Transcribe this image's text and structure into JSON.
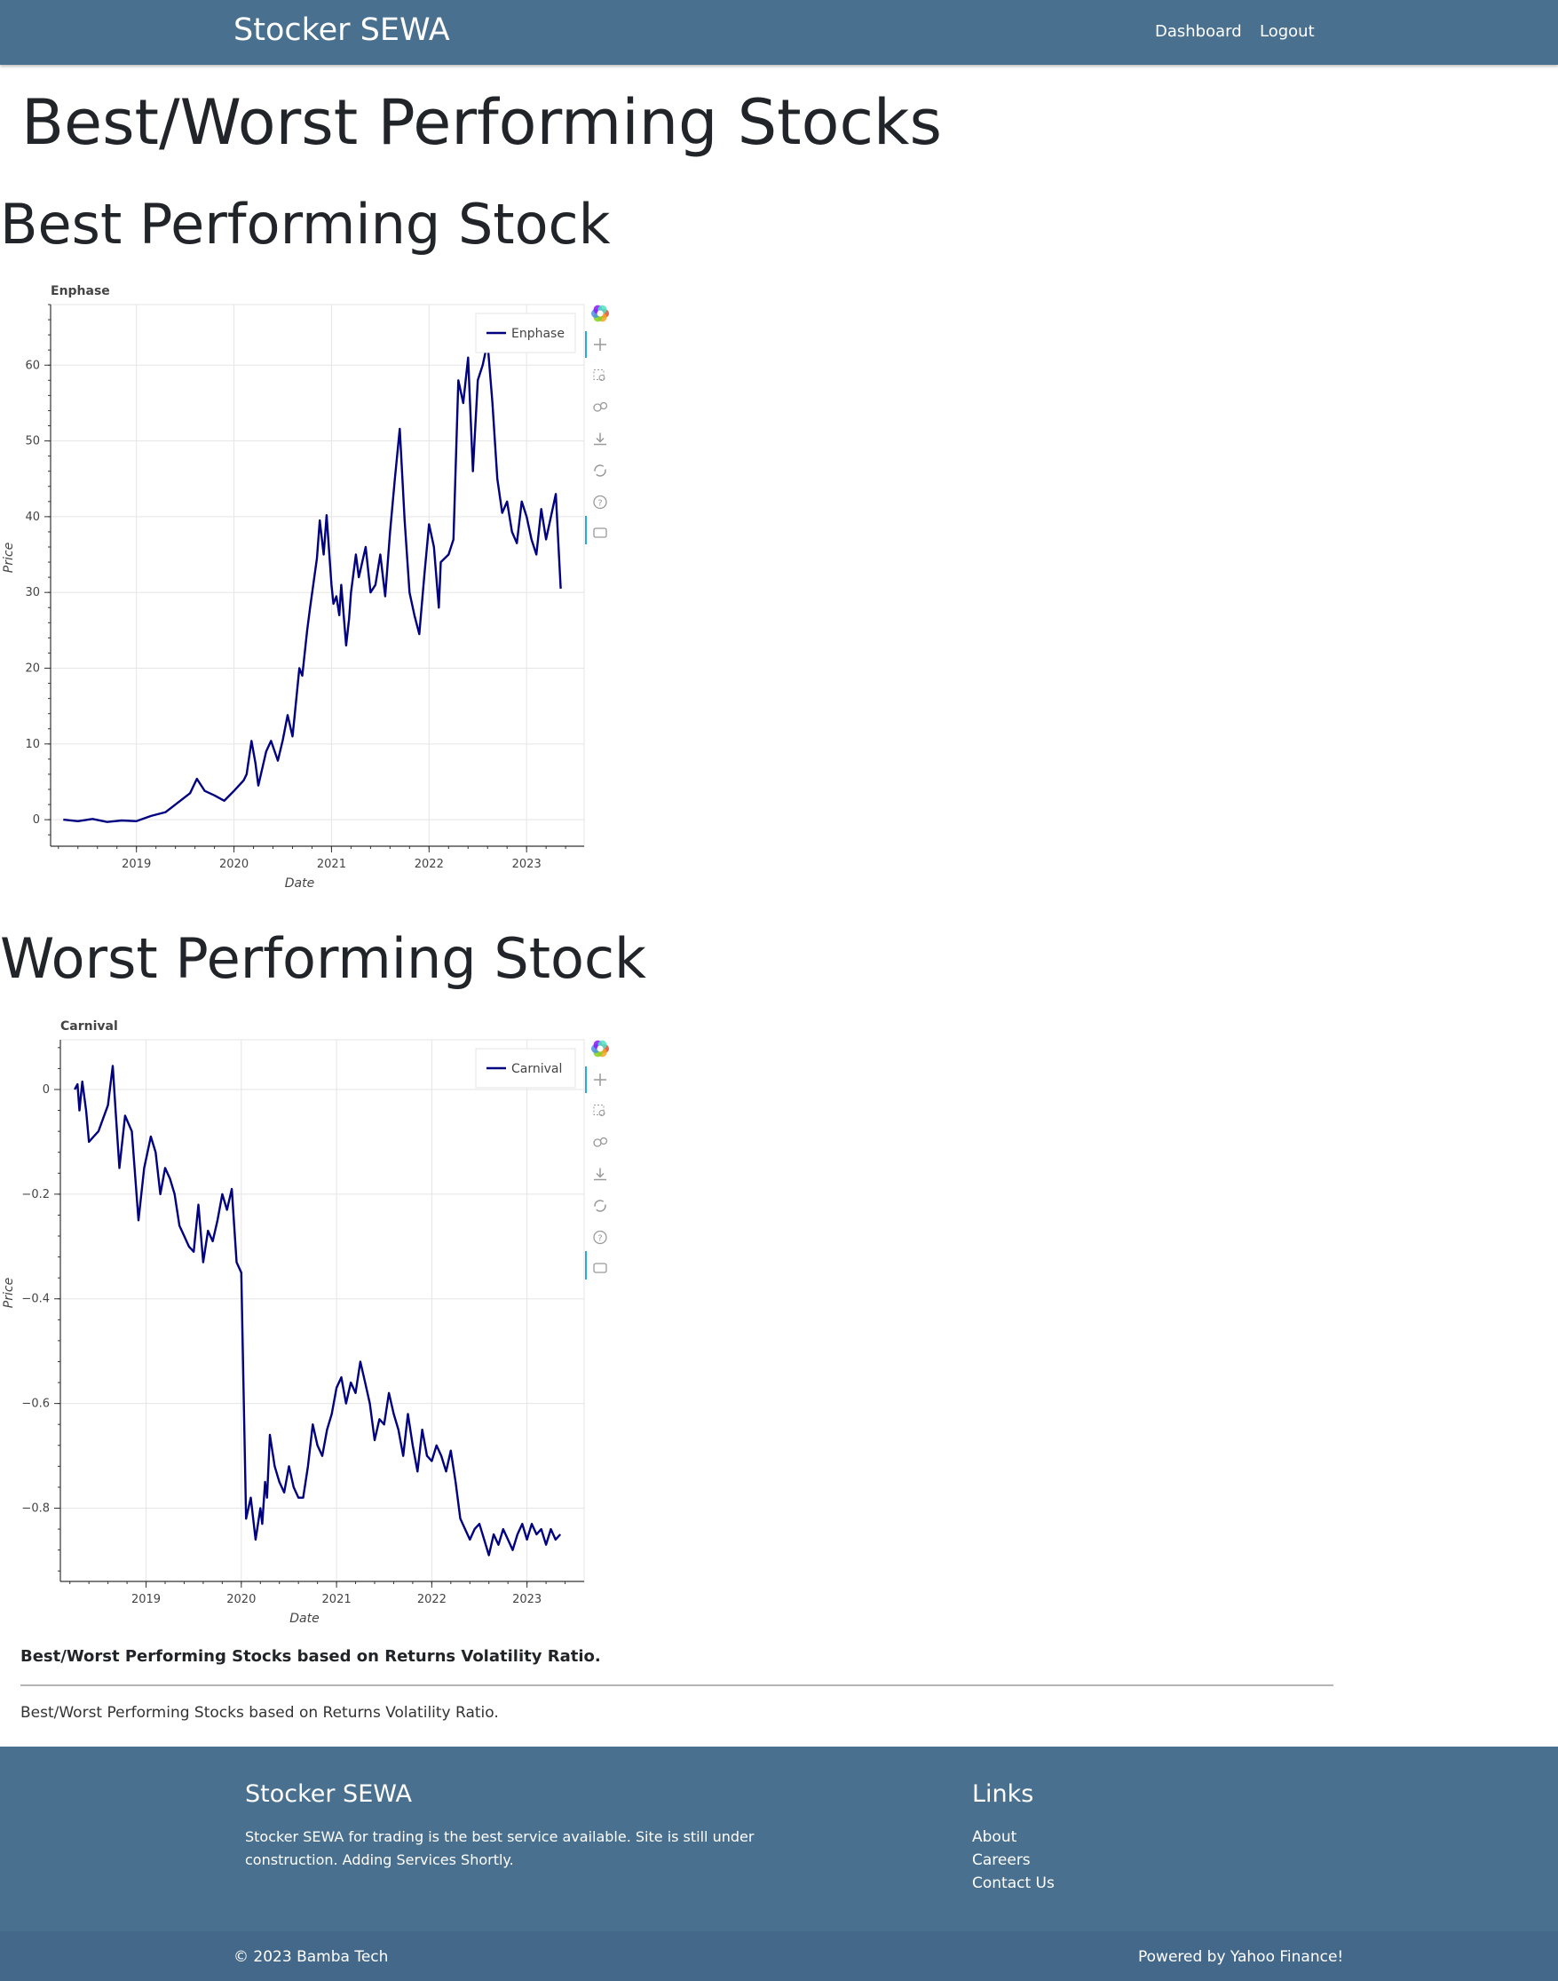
{
  "navbar": {
    "brand": "Stocker SEWA",
    "links": [
      "Dashboard",
      "Logout"
    ]
  },
  "page": {
    "title": "Best/Worst Performing Stocks",
    "best_heading": "Best Performing Stock",
    "worst_heading": "Worst Performing Stock",
    "caption_bold": "Best/Worst Performing Stocks based on Returns Volatility Ratio.",
    "caption": "Best/Worst Performing Stocks based on Returns Volatility Ratio."
  },
  "toolbar": {
    "tools": [
      "bokeh-logo",
      "pan-icon",
      "box-zoom-icon",
      "wheel-zoom-icon",
      "save-icon",
      "reset-icon",
      "help-icon",
      "hover-icon"
    ]
  },
  "chart_data": [
    {
      "type": "line",
      "title": "Enphase",
      "xlabel": "Date",
      "ylabel": "Price",
      "x_ticks": [
        "2019",
        "2020",
        "2021",
        "2022",
        "2023"
      ],
      "y_ticks": [
        "0",
        "10",
        "20",
        "30",
        "40",
        "50",
        "60"
      ],
      "xlim": [
        2018.12,
        2023.59
      ],
      "ylim": [
        -3.5,
        68.0
      ],
      "grid": true,
      "legend_position": "top-right",
      "series": [
        {
          "name": "Enphase",
          "color": "#000080",
          "x": [
            2018.25,
            2018.4,
            2018.55,
            2018.7,
            2018.85,
            2019.0,
            2019.15,
            2019.3,
            2019.45,
            2019.55,
            2019.62,
            2019.7,
            2019.8,
            2019.9,
            2020.0,
            2020.1,
            2020.13,
            2020.18,
            2020.22,
            2020.25,
            2020.33,
            2020.38,
            2020.45,
            2020.5,
            2020.55,
            2020.6,
            2020.62,
            2020.67,
            2020.7,
            2020.75,
            2020.78,
            2020.85,
            2020.88,
            2020.92,
            2020.95,
            2021.0,
            2021.02,
            2021.05,
            2021.08,
            2021.1,
            2021.15,
            2021.18,
            2021.2,
            2021.25,
            2021.28,
            2021.35,
            2021.4,
            2021.45,
            2021.5,
            2021.55,
            2021.6,
            2021.65,
            2021.7,
            2021.75,
            2021.8,
            2021.85,
            2021.9,
            2021.95,
            2022.0,
            2022.05,
            2022.1,
            2022.12,
            2022.2,
            2022.25,
            2022.3,
            2022.35,
            2022.4,
            2022.45,
            2022.5,
            2022.55,
            2022.6,
            2022.65,
            2022.7,
            2022.75,
            2022.8,
            2022.85,
            2022.9,
            2022.95,
            2023.0,
            2023.05,
            2023.1,
            2023.15,
            2023.2,
            2023.25,
            2023.3,
            2023.35
          ],
          "y": [
            0.0,
            -0.2,
            0.1,
            -0.3,
            -0.1,
            -0.2,
            0.5,
            1.0,
            2.5,
            3.5,
            5.4,
            3.8,
            3.2,
            2.5,
            3.8,
            5.2,
            6.0,
            10.4,
            7.5,
            4.5,
            9.0,
            10.4,
            7.8,
            10.5,
            13.8,
            11.0,
            13.5,
            20.0,
            19.0,
            25.0,
            28.0,
            34.5,
            39.5,
            35.0,
            40.2,
            31.0,
            28.5,
            29.5,
            27.0,
            31.0,
            23.0,
            26.5,
            30.0,
            35.0,
            32.0,
            36.0,
            30.0,
            31.0,
            35.0,
            29.5,
            38.0,
            45.0,
            51.6,
            39.5,
            30.0,
            27.0,
            24.5,
            32.0,
            39.0,
            36.0,
            28.0,
            34.0,
            35.0,
            37.0,
            58.0,
            55.0,
            61.0,
            46.0,
            58.0,
            60.0,
            63.0,
            55.0,
            45.0,
            40.5,
            42.0,
            38.0,
            36.5,
            42.0,
            40.0,
            37.0,
            35.0,
            41.0,
            37.0,
            40.0,
            43.0,
            30.5
          ]
        }
      ]
    },
    {
      "type": "line",
      "title": "Carnival",
      "xlabel": "Date",
      "ylabel": "Price",
      "x_ticks": [
        "2019",
        "2020",
        "2021",
        "2022",
        "2023"
      ],
      "y_ticks": [
        "0",
        "−0.2",
        "−0.4",
        "−0.6",
        "−0.8"
      ],
      "xlim": [
        2018.1,
        2023.6
      ],
      "ylim": [
        -0.94,
        0.095
      ],
      "grid": true,
      "legend_position": "top-right",
      "series": [
        {
          "name": "Carnival",
          "color": "#000080",
          "x": [
            2018.25,
            2018.28,
            2018.3,
            2018.33,
            2018.37,
            2018.4,
            2018.45,
            2018.5,
            2018.6,
            2018.65,
            2018.68,
            2018.72,
            2018.78,
            2018.85,
            2018.92,
            2018.98,
            2019.05,
            2019.1,
            2019.15,
            2019.2,
            2019.25,
            2019.3,
            2019.35,
            2019.4,
            2019.45,
            2019.5,
            2019.55,
            2019.6,
            2019.65,
            2019.7,
            2019.75,
            2019.8,
            2019.85,
            2019.9,
            2019.95,
            2020.0,
            2020.05,
            2020.1,
            2020.15,
            2020.2,
            2020.22,
            2020.25,
            2020.27,
            2020.3,
            2020.35,
            2020.4,
            2020.45,
            2020.5,
            2020.55,
            2020.6,
            2020.65,
            2020.7,
            2020.75,
            2020.8,
            2020.85,
            2020.9,
            2020.95,
            2021.0,
            2021.05,
            2021.1,
            2021.15,
            2021.2,
            2021.25,
            2021.3,
            2021.35,
            2021.4,
            2021.45,
            2021.5,
            2021.55,
            2021.6,
            2021.65,
            2021.7,
            2021.75,
            2021.8,
            2021.85,
            2021.9,
            2021.95,
            2022.0,
            2022.05,
            2022.1,
            2022.15,
            2022.2,
            2022.25,
            2022.3,
            2022.35,
            2022.4,
            2022.45,
            2022.5,
            2022.55,
            2022.6,
            2022.65,
            2022.7,
            2022.75,
            2022.8,
            2022.85,
            2022.9,
            2022.95,
            2023.0,
            2023.05,
            2023.1,
            2023.15,
            2023.2,
            2023.25,
            2023.3,
            2023.35
          ],
          "y": [
            0.0,
            0.01,
            -0.04,
            0.015,
            -0.04,
            -0.1,
            -0.09,
            -0.08,
            -0.03,
            0.045,
            -0.04,
            -0.15,
            -0.05,
            -0.08,
            -0.25,
            -0.15,
            -0.09,
            -0.12,
            -0.2,
            -0.15,
            -0.17,
            -0.2,
            -0.26,
            -0.28,
            -0.3,
            -0.31,
            -0.22,
            -0.33,
            -0.27,
            -0.29,
            -0.25,
            -0.2,
            -0.23,
            -0.19,
            -0.33,
            -0.35,
            -0.82,
            -0.78,
            -0.86,
            -0.8,
            -0.83,
            -0.75,
            -0.78,
            -0.66,
            -0.72,
            -0.75,
            -0.77,
            -0.72,
            -0.76,
            -0.78,
            -0.78,
            -0.72,
            -0.64,
            -0.68,
            -0.7,
            -0.65,
            -0.62,
            -0.57,
            -0.55,
            -0.6,
            -0.56,
            -0.58,
            -0.52,
            -0.56,
            -0.6,
            -0.67,
            -0.63,
            -0.64,
            -0.58,
            -0.62,
            -0.65,
            -0.7,
            -0.62,
            -0.68,
            -0.73,
            -0.65,
            -0.7,
            -0.71,
            -0.68,
            -0.7,
            -0.73,
            -0.69,
            -0.75,
            -0.82,
            -0.84,
            -0.86,
            -0.84,
            -0.83,
            -0.86,
            -0.89,
            -0.85,
            -0.87,
            -0.84,
            -0.86,
            -0.88,
            -0.85,
            -0.83,
            -0.86,
            -0.83,
            -0.85,
            -0.84,
            -0.87,
            -0.84,
            -0.86,
            -0.85
          ]
        }
      ]
    }
  ],
  "footer": {
    "brand": "Stocker SEWA",
    "description": "Stocker SEWA for trading is the best service available. Site is still under construction. Adding Services Shortly.",
    "links_title": "Links",
    "links": [
      "About",
      "Careers",
      "Contact Us"
    ],
    "copyright": "© 2023 Bamba Tech",
    "powered_by": "Powered by Yahoo Finance!"
  }
}
